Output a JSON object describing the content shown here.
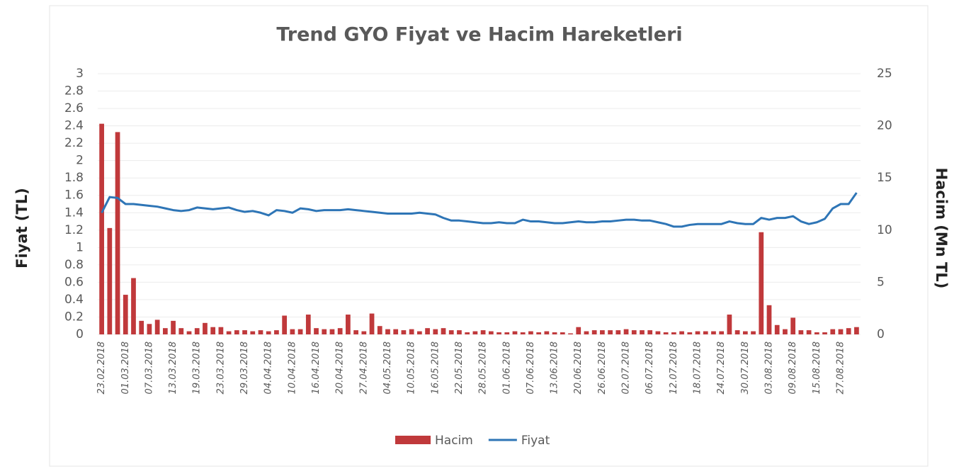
{
  "chart_data": {
    "type": "bar-line",
    "title": "Trend GYO Fiyat ve Hacim Hareketleri",
    "ylabel": "Fiyat (TL)",
    "y2label": "Hacim (Mn TL)",
    "categories": [
      "23.02.2018",
      null,
      null,
      "01.03.2018",
      null,
      null,
      "07.03.2018",
      null,
      null,
      "13.03.2018",
      null,
      null,
      "19.03.2018",
      null,
      null,
      "23.03.2018",
      null,
      null,
      "29.03.2018",
      null,
      null,
      "04.04.2018",
      null,
      null,
      "10.04.2018",
      null,
      null,
      "16.04.2018",
      null,
      null,
      "20.04.2018",
      null,
      null,
      "27.04.2018",
      null,
      null,
      "04.05.2018",
      null,
      null,
      "10.05.2018",
      null,
      null,
      "16.05.2018",
      null,
      null,
      "22.05.2018",
      null,
      null,
      "28.05.2018",
      null,
      null,
      "01.06.2018",
      null,
      null,
      "07.06.2018",
      null,
      null,
      "13.06.2018",
      null,
      null,
      "20.06.2018",
      null,
      null,
      "26.06.2018",
      null,
      null,
      "02.07.2018",
      null,
      null,
      "06.07.2018",
      null,
      null,
      "12.07.2018",
      null,
      null,
      "18.07.2018",
      null,
      null,
      "24.07.2018",
      null,
      null,
      "30.07.2018",
      null,
      null,
      "03.08.2018",
      null,
      null,
      "09.08.2018",
      null,
      null,
      "15.08.2018",
      null,
      null,
      "27.08.2018",
      null,
      null
    ],
    "series": [
      {
        "name": "Hacim",
        "color": "#c0393b",
        "axis": "y2",
        "values": [
          20.2,
          10.2,
          19.4,
          3.8,
          5.4,
          1.3,
          1.0,
          1.4,
          0.6,
          1.3,
          0.6,
          0.3,
          0.6,
          1.1,
          0.7,
          0.7,
          0.3,
          0.4,
          0.4,
          0.3,
          0.4,
          0.3,
          0.4,
          1.8,
          0.5,
          0.5,
          1.9,
          0.6,
          0.5,
          0.5,
          0.6,
          1.9,
          0.4,
          0.3,
          2.0,
          0.8,
          0.5,
          0.5,
          0.4,
          0.5,
          0.3,
          0.6,
          0.5,
          0.6,
          0.4,
          0.4,
          0.2,
          0.3,
          0.4,
          0.3,
          0.2,
          0.2,
          0.3,
          0.2,
          0.3,
          0.2,
          0.3,
          0.2,
          0.2,
          0.1,
          0.7,
          0.3,
          0.4,
          0.4,
          0.4,
          0.4,
          0.5,
          0.4,
          0.4,
          0.4,
          0.3,
          0.2,
          0.2,
          0.3,
          0.2,
          0.3,
          0.3,
          0.3,
          0.3,
          1.9,
          0.4,
          0.3,
          0.3,
          9.8,
          2.8,
          0.9,
          0.5,
          1.6,
          0.4,
          0.4,
          0.2,
          0.2,
          0.5,
          0.5,
          0.6,
          0.7
        ]
      },
      {
        "name": "Fiyat",
        "color": "#2e75b6",
        "axis": "y",
        "values": [
          1.4,
          1.58,
          1.57,
          1.5,
          1.5,
          1.49,
          1.48,
          1.47,
          1.45,
          1.43,
          1.42,
          1.43,
          1.46,
          1.45,
          1.44,
          1.45,
          1.46,
          1.43,
          1.41,
          1.42,
          1.4,
          1.37,
          1.43,
          1.42,
          1.4,
          1.45,
          1.44,
          1.42,
          1.43,
          1.43,
          1.43,
          1.44,
          1.43,
          1.42,
          1.41,
          1.4,
          1.39,
          1.39,
          1.39,
          1.39,
          1.4,
          1.39,
          1.38,
          1.34,
          1.31,
          1.31,
          1.3,
          1.29,
          1.28,
          1.28,
          1.29,
          1.28,
          1.28,
          1.32,
          1.3,
          1.3,
          1.29,
          1.28,
          1.28,
          1.29,
          1.3,
          1.29,
          1.29,
          1.3,
          1.3,
          1.31,
          1.32,
          1.32,
          1.31,
          1.31,
          1.29,
          1.27,
          1.24,
          1.24,
          1.26,
          1.27,
          1.27,
          1.27,
          1.27,
          1.3,
          1.28,
          1.27,
          1.27,
          1.34,
          1.32,
          1.34,
          1.34,
          1.36,
          1.3,
          1.27,
          1.29,
          1.33,
          1.45,
          1.5,
          1.5,
          1.63
        ]
      }
    ],
    "ylim": [
      0,
      3
    ],
    "yticks": [
      0,
      0.2,
      0.4,
      0.6,
      0.8,
      1,
      1.2,
      1.4,
      1.6,
      1.8,
      2,
      2.2,
      2.4,
      2.6,
      2.8,
      3
    ],
    "y2lim": [
      0,
      25
    ],
    "y2ticks": [
      0,
      5,
      10,
      15,
      20,
      25
    ],
    "grid": true,
    "legend": "bottom"
  }
}
